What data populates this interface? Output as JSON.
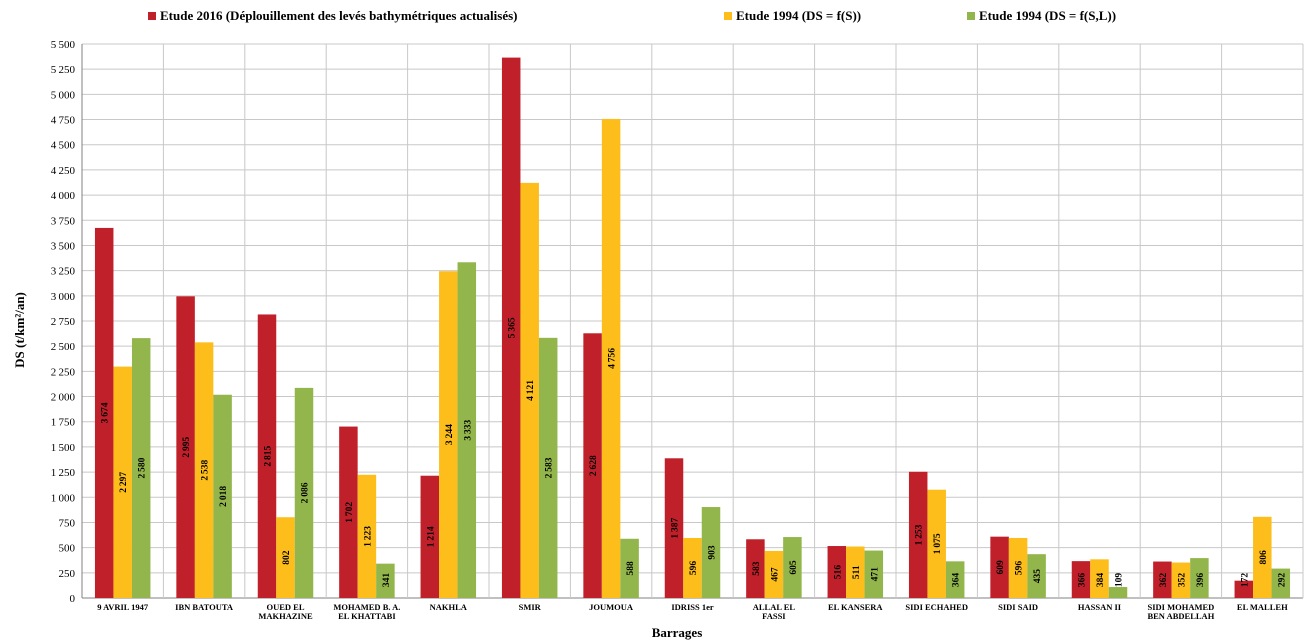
{
  "chart_data": {
    "type": "bar",
    "ylabel": "DS (t/km²/an)",
    "xlabel": "Barrages",
    "ylim": [
      0,
      5500
    ],
    "ytick_step": 250,
    "grid": true,
    "legend_position": "top",
    "categories": [
      [
        "9 AVRIL 1947"
      ],
      [
        "IBN BATOUTA"
      ],
      [
        "OUED EL",
        "MAKHAZINE"
      ],
      [
        "MOHAMED B. A.",
        "EL KHATTABI"
      ],
      [
        "NAKHLA"
      ],
      [
        "SMIR"
      ],
      [
        "JOUMOUA"
      ],
      [
        "IDRISS 1er"
      ],
      [
        "ALLAL EL",
        "FASSI"
      ],
      [
        "EL KANSERA"
      ],
      [
        "SIDI ECHAHED"
      ],
      [
        "SIDI SAID"
      ],
      [
        "HASSAN II"
      ],
      [
        "SIDI MOHAMED",
        "BEN ABDELLAH"
      ],
      [
        "EL MALLEH"
      ]
    ],
    "series": [
      {
        "name": "Etude 2016 (Déplouillement des levés bathymétriques actualisés)",
        "color": "#c0202a",
        "values": [
          3674,
          2995,
          2815,
          1702,
          1214,
          5365,
          2628,
          1387,
          583,
          516,
          1253,
          609,
          366,
          362,
          172
        ]
      },
      {
        "name": "Etude 1994 (DS = f(S))",
        "color": "#fdbd1a",
        "values": [
          2297,
          2538,
          802,
          1223,
          3244,
          4121,
          4756,
          596,
          467,
          511,
          1075,
          596,
          384,
          352,
          806
        ]
      },
      {
        "name": "Etude 1994 (DS = f(S,L))",
        "color": "#92b64b",
        "values": [
          2580,
          2018,
          2086,
          341,
          3333,
          2583,
          588,
          903,
          605,
          471,
          364,
          435,
          109,
          396,
          292
        ]
      }
    ]
  }
}
